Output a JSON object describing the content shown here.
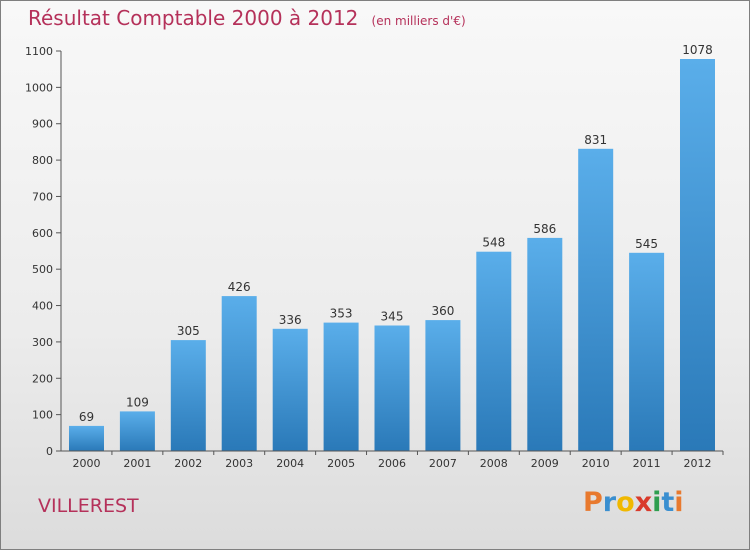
{
  "header": {
    "title": "Résultat Comptable 2000 à 2012",
    "subtitle": "(en milliers d'€)"
  },
  "footer": {
    "place": "VILLEREST",
    "brand_letters": [
      {
        "ch": "P",
        "color": "#e8792e"
      },
      {
        "ch": "r",
        "color": "#3a8fd0"
      },
      {
        "ch": "o",
        "color": "#f0b800"
      },
      {
        "ch": "x",
        "color": "#d93a2b"
      },
      {
        "ch": "i",
        "color": "#2e9e4f"
      },
      {
        "ch": "t",
        "color": "#3a8fd0"
      },
      {
        "ch": "i",
        "color": "#e8792e"
      }
    ]
  },
  "chart_data": {
    "type": "bar",
    "categories": [
      "2000",
      "2001",
      "2002",
      "2003",
      "2004",
      "2005",
      "2006",
      "2007",
      "2008",
      "2009",
      "2010",
      "2011",
      "2012"
    ],
    "values": [
      69,
      109,
      305,
      426,
      336,
      353,
      345,
      360,
      548,
      586,
      831,
      545,
      1078
    ],
    "ylim": [
      0,
      1100
    ],
    "yticks": [
      0,
      100,
      200,
      300,
      400,
      500,
      600,
      700,
      800,
      900,
      1000,
      1100
    ],
    "grid": false,
    "bar_color_top": "#5aaeea",
    "bar_color_bottom": "#2a79b8",
    "axis_color": "#555555"
  }
}
